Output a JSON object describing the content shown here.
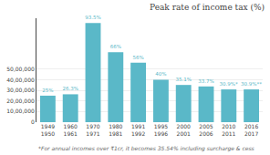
{
  "chart_data": {
    "type": "bar",
    "title": "Peak rate of income tax (%)",
    "categories": [
      "1949\n1950",
      "1960\n1961",
      "1970\n1971",
      "1980\n1981",
      "1991\n1992",
      "1995\n1996",
      "2000\n2001",
      "2005\n2006",
      "2010\n2011",
      "2016\n2017"
    ],
    "values": [
      25,
      26.3,
      93.5,
      66,
      56,
      40,
      35.1,
      33.7,
      30.9,
      30.9
    ],
    "value_labels": [
      "25%",
      "26.3%",
      "93.5%",
      "66%",
      "56%",
      "40%",
      "35.1%",
      "33.7%",
      "30.9%*",
      "30.9%**"
    ],
    "data_labels": true,
    "color": "#5ab8c8",
    "ylim": [
      0,
      98
    ],
    "yticks": [
      0,
      {
        "value": 10,
        "label": "10,00,000"
      },
      {
        "value": 20,
        "label": "20,00,000"
      },
      {
        "value": 30,
        "label": "30,00,000"
      },
      {
        "value": 40,
        "label": "40,00,000"
      },
      {
        "value": 50,
        "label": "50,00,000"
      }
    ],
    "grid": true,
    "annotations": [
      "*For annual incomes over ₹1cr, it becomes 35.54% including surcharge & cess"
    ]
  }
}
